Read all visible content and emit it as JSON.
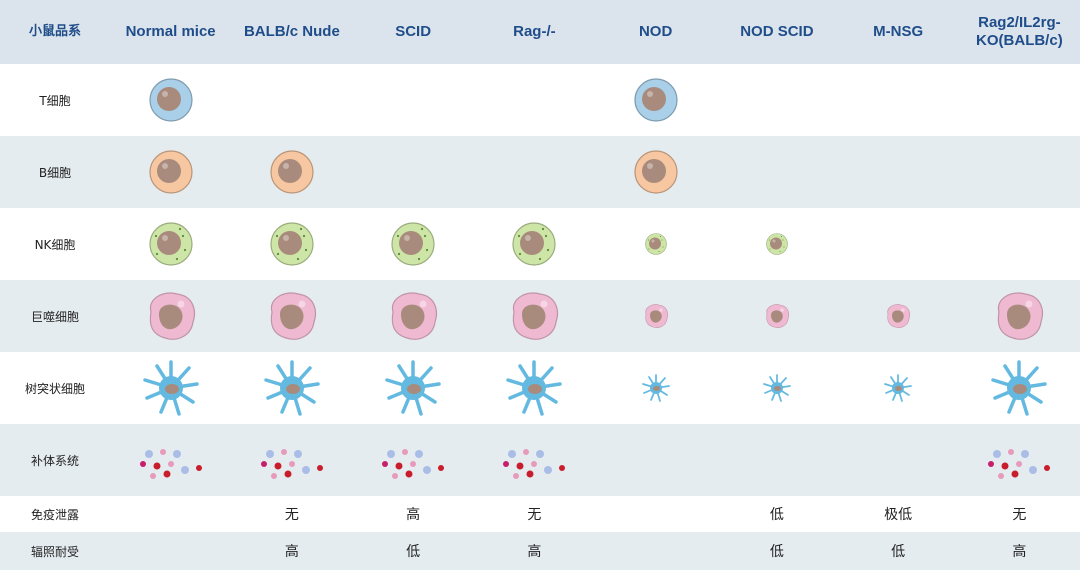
{
  "header": {
    "label": "小鼠品系",
    "strains": [
      "Normal mice",
      "BALB/c Nude",
      "SCID",
      "Rag-/-",
      "NOD",
      "NOD SCID",
      "M-NSG",
      "Rag2/IL2rg-KO(BALB/c)"
    ]
  },
  "rows": [
    {
      "label": "T细胞",
      "kind": "tcell",
      "present": [
        "full",
        "",
        "",
        "",
        "full",
        "",
        "",
        ""
      ]
    },
    {
      "label": "B细胞",
      "kind": "bcell",
      "present": [
        "full",
        "full",
        "",
        "",
        "full",
        "",
        "",
        ""
      ]
    },
    {
      "label": "NK细胞",
      "kind": "nk",
      "present": [
        "full",
        "full",
        "full",
        "full",
        "small",
        "small",
        "",
        ""
      ]
    },
    {
      "label": "巨噬细胞",
      "kind": "macro",
      "present": [
        "full",
        "full",
        "full",
        "full",
        "small",
        "small",
        "small",
        "full"
      ]
    },
    {
      "label": "树突状细胞",
      "kind": "dendritic",
      "present": [
        "full",
        "full",
        "full",
        "full",
        "small",
        "small",
        "small",
        "full"
      ]
    },
    {
      "label": "补体系统",
      "kind": "complement",
      "present": [
        "full",
        "full",
        "full",
        "full",
        "",
        "",
        "",
        "full"
      ]
    },
    {
      "label": "免疫泄露",
      "kind": "text",
      "values": [
        "",
        "无",
        "高",
        "无",
        "",
        "低",
        "极低",
        "无"
      ]
    },
    {
      "label": "辐照耐受",
      "kind": "text",
      "values": [
        "",
        "高",
        "低",
        "高",
        "",
        "低",
        "低",
        "高"
      ]
    }
  ],
  "colors": {
    "header_bg": "#dbe4ec",
    "header_text": "#1f4d8a",
    "stripe": "#e5ecf0",
    "tcell": "#a9cfe9",
    "bcell": "#f7c7a2",
    "nk": "#cde5a6",
    "macro": "#f0b9d2",
    "dendritic": "#63b9e0",
    "nucleus": "#a88b7c"
  }
}
